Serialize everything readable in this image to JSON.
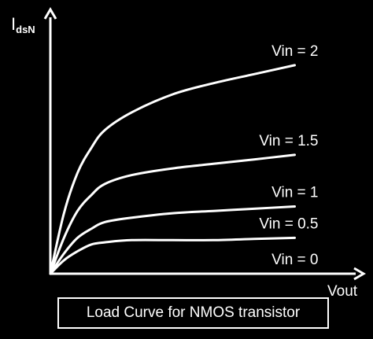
{
  "chart_data": {
    "type": "line",
    "title": "Load Curve for NMOS transistor",
    "ylabel_main": "I",
    "ylabel_sub": "dsN",
    "xlabel": "Vout",
    "grid": false,
    "legend": "none",
    "ticks": false,
    "colors": {
      "background": "#000000",
      "foreground": "#ffffff"
    },
    "x_domain": [
      0,
      1
    ],
    "y_domain": [
      0,
      1
    ],
    "series": [
      {
        "name": "Vin = 2",
        "points": [
          [
            0,
            0
          ],
          [
            0.05,
            0.27
          ],
          [
            0.1,
            0.45
          ],
          [
            0.15,
            0.56
          ],
          [
            0.2,
            0.64
          ],
          [
            0.3,
            0.72
          ],
          [
            0.45,
            0.8
          ],
          [
            0.6,
            0.85
          ],
          [
            0.75,
            0.89
          ],
          [
            0.9,
            0.93
          ]
        ]
      },
      {
        "name": "Vin = 1.5",
        "points": [
          [
            0,
            0
          ],
          [
            0.05,
            0.16
          ],
          [
            0.1,
            0.28
          ],
          [
            0.15,
            0.35
          ],
          [
            0.2,
            0.4
          ],
          [
            0.3,
            0.44
          ],
          [
            0.45,
            0.47
          ],
          [
            0.6,
            0.49
          ],
          [
            0.75,
            0.51
          ],
          [
            0.9,
            0.53
          ]
        ]
      },
      {
        "name": "Vin = 1",
        "points": [
          [
            0,
            0
          ],
          [
            0.05,
            0.09
          ],
          [
            0.1,
            0.16
          ],
          [
            0.15,
            0.2
          ],
          [
            0.2,
            0.23
          ],
          [
            0.3,
            0.25
          ],
          [
            0.45,
            0.27
          ],
          [
            0.6,
            0.28
          ],
          [
            0.75,
            0.29
          ],
          [
            0.9,
            0.3
          ]
        ]
      },
      {
        "name": "Vin = 0.5",
        "points": [
          [
            0,
            0
          ],
          [
            0.05,
            0.06
          ],
          [
            0.1,
            0.1
          ],
          [
            0.15,
            0.13
          ],
          [
            0.2,
            0.14
          ],
          [
            0.3,
            0.15
          ],
          [
            0.45,
            0.15
          ],
          [
            0.6,
            0.15
          ],
          [
            0.75,
            0.155
          ],
          [
            0.9,
            0.16
          ]
        ]
      },
      {
        "name": "Vin = 0",
        "points": [
          [
            0,
            0
          ],
          [
            0.9,
            0
          ]
        ]
      }
    ]
  }
}
